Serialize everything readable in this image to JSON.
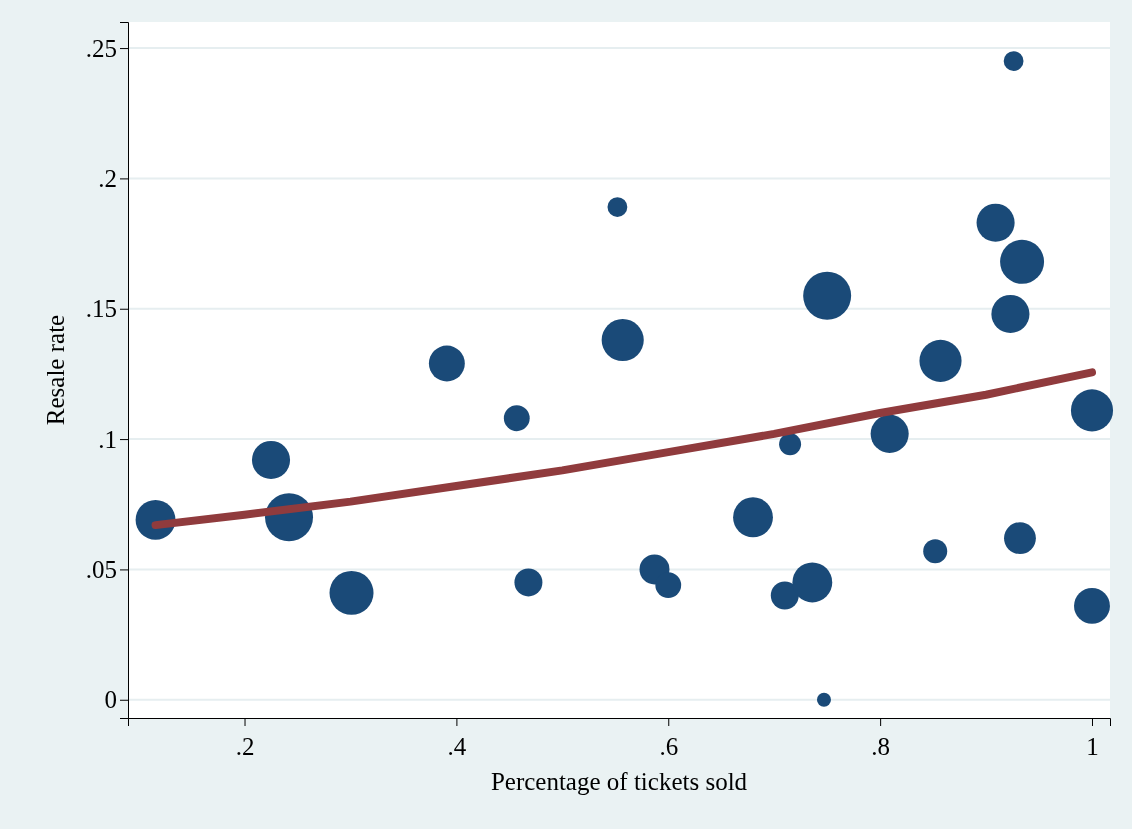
{
  "chart_data": {
    "type": "bubble",
    "xlabel": "Percentage of tickets sold",
    "ylabel": "Resale rate",
    "xlim": [
      0.09,
      1.017
    ],
    "ylim": [
      -0.007,
      0.26
    ],
    "xticks": [
      {
        "value": 0.2,
        "label": ".2"
      },
      {
        "value": 0.4,
        "label": ".4"
      },
      {
        "value": 0.6,
        "label": ".6"
      },
      {
        "value": 0.8,
        "label": ".8"
      },
      1
    ],
    "yticks": [
      0,
      {
        "value": 0.05,
        "label": ".05"
      },
      {
        "value": 0.1,
        "label": ".1"
      },
      {
        "value": 0.15,
        "label": ".15"
      },
      {
        "value": 0.2,
        "label": ".2"
      },
      {
        "value": 0.25,
        "label": ".25"
      }
    ],
    "grid": "y",
    "series": [
      {
        "color": "#1a4a78",
        "x": [
          0.116,
          0.225,
          0.242,
          0.301,
          0.391,
          0.457,
          0.468,
          0.552,
          0.557,
          0.587,
          0.6,
          0.68,
          0.715,
          0.71,
          0.736,
          0.75,
          0.747,
          0.809,
          0.857,
          0.852,
          0.909,
          0.923,
          0.934,
          0.932,
          0.926,
          1.0,
          1.0
        ],
        "values": [
          0.069,
          0.092,
          0.07,
          0.041,
          0.129,
          0.108,
          0.045,
          0.189,
          0.138,
          0.05,
          0.044,
          0.07,
          0.098,
          0.04,
          0.045,
          0.155,
          0.0,
          0.102,
          0.13,
          0.057,
          0.183,
          0.148,
          0.168,
          0.062,
          0.245,
          0.111,
          0.036
        ],
        "sizes": [
          0.69,
          0.63,
          1,
          0.84,
          0.56,
          0.29,
          0.34,
          0.17,
          0.77,
          0.39,
          0.29,
          0.69,
          0.21,
          0.34,
          0.69,
          1,
          0.085,
          0.63,
          0.77,
          0.25,
          0.63,
          0.63,
          0.84,
          0.44,
          0.17,
          0.77,
          0.56
        ]
      },
      {
        "type": "line",
        "color": "#903b3d",
        "x": [
          0.116,
          0.2,
          0.3,
          0.4,
          0.5,
          0.6,
          0.7,
          0.8,
          0.9,
          1.0
        ],
        "values": [
          0.067,
          0.071,
          0.076,
          0.082,
          0.088,
          0.095,
          0.102,
          0.11,
          0.117,
          0.1256
        ]
      }
    ]
  }
}
